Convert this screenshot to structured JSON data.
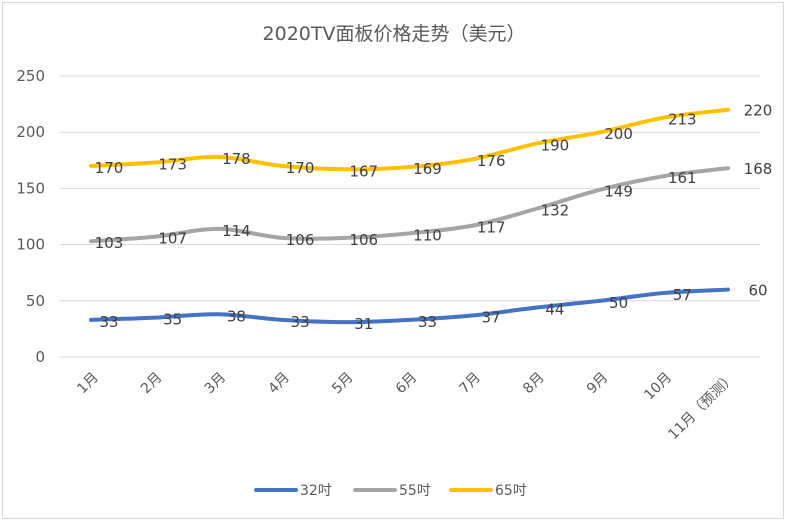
{
  "chart_data": {
    "type": "line",
    "title": "2020TV面板价格走势（美元）",
    "categories": [
      "1月",
      "2月",
      "3月",
      "4月",
      "5月",
      "6月",
      "7月",
      "8月",
      "9月",
      "10月",
      "11月（预测）"
    ],
    "ylim": [
      0,
      250
    ],
    "yticks": [
      0,
      50,
      100,
      150,
      200,
      250
    ],
    "grid": true,
    "legend_position": "bottom",
    "series": [
      {
        "name": "32吋",
        "color": "#4472c4",
        "values": [
          33,
          35,
          38,
          33,
          31,
          33,
          37,
          44,
          50,
          57,
          60
        ]
      },
      {
        "name": "55吋",
        "color": "#a5a5a5",
        "values": [
          103,
          107,
          114,
          106,
          106,
          110,
          117,
          132,
          149,
          161,
          168
        ]
      },
      {
        "name": "65吋",
        "color": "#ffc000",
        "values": [
          170,
          173,
          178,
          170,
          167,
          169,
          176,
          190,
          200,
          213,
          220
        ]
      }
    ]
  }
}
